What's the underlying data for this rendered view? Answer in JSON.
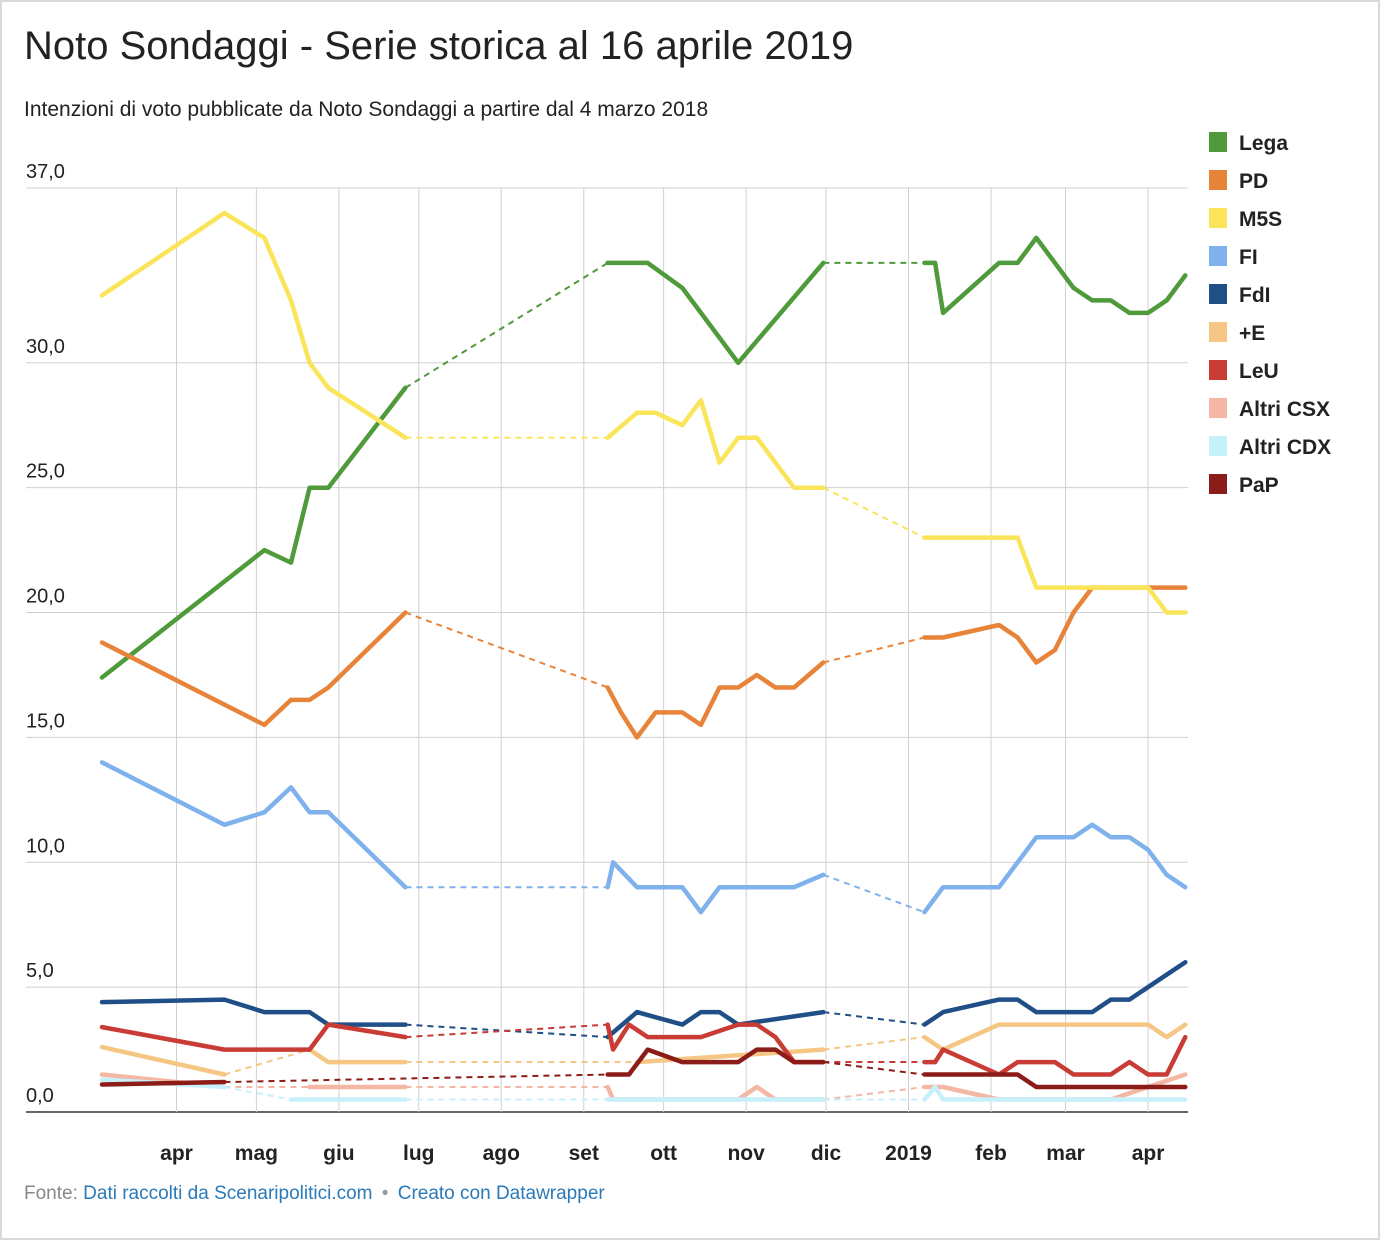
{
  "title": "Noto Sondaggi - Serie storica al 16 aprile 2019",
  "subtitle": "Intenzioni di voto pubblicate da Noto Sondaggi a partire dal 4 marzo 2018",
  "footer": {
    "source_label": "Fonte:",
    "source_link": "Dati raccolti da Scenaripolitici.com",
    "separator": "•",
    "credit_link": "Creato con Datawrapper"
  },
  "chart_data": {
    "type": "line",
    "title": "Noto Sondaggi - Serie storica al 16 aprile 2019",
    "subtitle": "Intenzioni di voto pubblicate da Noto Sondaggi a partire dal 4 marzo 2018",
    "xlabel": "",
    "ylabel": "",
    "xlim": [
      "2018-03-04",
      "2019-04-16"
    ],
    "ylim": [
      0,
      37
    ],
    "y_ticks": [
      0,
      5,
      10,
      15,
      20,
      25,
      30,
      37
    ],
    "y_tick_labels": [
      "0,0",
      "5,0",
      "10,0",
      "15,0",
      "20,0",
      "25,0",
      "30,0",
      "37,0"
    ],
    "x_ticks": [
      {
        "date": "2018-04-01",
        "label": "apr"
      },
      {
        "date": "2018-05-01",
        "label": "mag"
      },
      {
        "date": "2018-06-01",
        "label": "giu"
      },
      {
        "date": "2018-07-01",
        "label": "lug"
      },
      {
        "date": "2018-08-01",
        "label": "ago"
      },
      {
        "date": "2018-09-01",
        "label": "set"
      },
      {
        "date": "2018-10-01",
        "label": "ott"
      },
      {
        "date": "2018-11-01",
        "label": "nov"
      },
      {
        "date": "2018-12-01",
        "label": "dic"
      },
      {
        "date": "2019-01-01",
        "label": "2019"
      },
      {
        "date": "2019-02-01",
        "label": "feb"
      },
      {
        "date": "2019-03-01",
        "label": "mar"
      },
      {
        "date": "2019-04-01",
        "label": "apr"
      }
    ],
    "grid": true,
    "legend_position": "right",
    "series": [
      {
        "name": "Lega",
        "color": "#4f9a3a",
        "points": [
          [
            "2018-03-04",
            17.4
          ],
          [
            "2018-05-04",
            22.5
          ],
          [
            "2018-05-14",
            22.0
          ],
          [
            "2018-05-21",
            25.0
          ],
          [
            "2018-05-28",
            25.0
          ],
          [
            "2018-06-26",
            29.0
          ],
          null,
          [
            "2018-09-10",
            34.0
          ],
          [
            "2018-09-25",
            34.0
          ],
          [
            "2018-10-08",
            33.0
          ],
          [
            "2018-10-29",
            30.0
          ],
          [
            "2018-11-30",
            34.0
          ],
          null,
          [
            "2019-01-07",
            34.0
          ],
          [
            "2019-01-11",
            34.0
          ],
          [
            "2019-01-14",
            32.0
          ],
          [
            "2019-02-04",
            34.0
          ],
          [
            "2019-02-11",
            34.0
          ],
          [
            "2019-02-18",
            35.0
          ],
          [
            "2019-03-04",
            33.0
          ],
          [
            "2019-03-11",
            32.5
          ],
          [
            "2019-03-18",
            32.5
          ],
          [
            "2019-03-25",
            32.0
          ],
          [
            "2019-04-01",
            32.0
          ],
          [
            "2019-04-08",
            32.5
          ],
          [
            "2019-04-15",
            33.5
          ]
        ]
      },
      {
        "name": "PD",
        "color": "#e8843a",
        "points": [
          [
            "2018-03-04",
            18.8
          ],
          [
            "2018-05-04",
            15.5
          ],
          [
            "2018-05-14",
            16.5
          ],
          [
            "2018-05-21",
            16.5
          ],
          [
            "2018-05-28",
            17.0
          ],
          [
            "2018-06-26",
            20.0
          ],
          null,
          [
            "2018-09-10",
            17.0
          ],
          [
            "2018-09-15",
            16.0
          ],
          [
            "2018-09-21",
            15.0
          ],
          [
            "2018-09-28",
            16.0
          ],
          [
            "2018-10-08",
            16.0
          ],
          [
            "2018-10-15",
            15.5
          ],
          [
            "2018-10-22",
            17.0
          ],
          [
            "2018-10-29",
            17.0
          ],
          [
            "2018-11-05",
            17.5
          ],
          [
            "2018-11-12",
            17.0
          ],
          [
            "2018-11-19",
            17.0
          ],
          [
            "2018-11-30",
            18.0
          ],
          null,
          [
            "2019-01-07",
            19.0
          ],
          [
            "2019-01-14",
            19.0
          ],
          [
            "2019-02-04",
            19.5
          ],
          [
            "2019-02-11",
            19.0
          ],
          [
            "2019-02-18",
            18.0
          ],
          [
            "2019-02-25",
            18.5
          ],
          [
            "2019-03-04",
            20.0
          ],
          [
            "2019-03-11",
            21.0
          ],
          [
            "2019-03-18",
            21.0
          ],
          [
            "2019-04-01",
            21.0
          ],
          [
            "2019-04-15",
            21.0
          ]
        ]
      },
      {
        "name": "M5S",
        "color": "#fae55a",
        "points": [
          [
            "2018-03-04",
            32.7
          ],
          [
            "2018-04-19",
            36.0
          ],
          [
            "2018-05-04",
            35.0
          ],
          [
            "2018-05-14",
            32.5
          ],
          [
            "2018-05-21",
            30.0
          ],
          [
            "2018-05-28",
            29.0
          ],
          [
            "2018-06-26",
            27.0
          ],
          null,
          [
            "2018-09-10",
            27.0
          ],
          [
            "2018-09-21",
            28.0
          ],
          [
            "2018-09-28",
            28.0
          ],
          [
            "2018-10-08",
            27.5
          ],
          [
            "2018-10-15",
            28.5
          ],
          [
            "2018-10-22",
            26.0
          ],
          [
            "2018-10-29",
            27.0
          ],
          [
            "2018-11-05",
            27.0
          ],
          [
            "2018-11-19",
            25.0
          ],
          [
            "2018-11-30",
            25.0
          ],
          null,
          [
            "2019-01-07",
            23.0
          ],
          [
            "2019-01-14",
            23.0
          ],
          [
            "2019-02-11",
            23.0
          ],
          [
            "2019-02-18",
            21.0
          ],
          [
            "2019-03-18",
            21.0
          ],
          [
            "2019-04-01",
            21.0
          ],
          [
            "2019-04-08",
            20.0
          ],
          [
            "2019-04-15",
            20.0
          ]
        ]
      },
      {
        "name": "FI",
        "color": "#7fb2ec",
        "points": [
          [
            "2018-03-04",
            14.0
          ],
          [
            "2018-04-19",
            11.5
          ],
          [
            "2018-05-04",
            12.0
          ],
          [
            "2018-05-14",
            13.0
          ],
          [
            "2018-05-21",
            12.0
          ],
          [
            "2018-05-28",
            12.0
          ],
          [
            "2018-06-26",
            9.0
          ],
          null,
          [
            "2018-09-10",
            9.0
          ],
          [
            "2018-09-12",
            10.0
          ],
          [
            "2018-09-21",
            9.0
          ],
          [
            "2018-10-08",
            9.0
          ],
          [
            "2018-10-15",
            8.0
          ],
          [
            "2018-10-22",
            9.0
          ],
          [
            "2018-11-19",
            9.0
          ],
          [
            "2018-11-30",
            9.5
          ],
          null,
          [
            "2019-01-07",
            8.0
          ],
          [
            "2019-01-14",
            9.0
          ],
          [
            "2019-02-04",
            9.0
          ],
          [
            "2019-02-18",
            11.0
          ],
          [
            "2019-03-04",
            11.0
          ],
          [
            "2019-03-11",
            11.5
          ],
          [
            "2019-03-18",
            11.0
          ],
          [
            "2019-03-25",
            11.0
          ],
          [
            "2019-04-01",
            10.5
          ],
          [
            "2019-04-08",
            9.5
          ],
          [
            "2019-04-15",
            9.0
          ]
        ]
      },
      {
        "name": "FdI",
        "color": "#1f4f86",
        "points": [
          [
            "2018-03-04",
            4.4
          ],
          [
            "2018-04-19",
            4.5
          ],
          [
            "2018-05-04",
            4.0
          ],
          [
            "2018-05-21",
            4.0
          ],
          [
            "2018-05-28",
            3.5
          ],
          [
            "2018-06-26",
            3.5
          ],
          null,
          [
            "2018-09-10",
            3.0
          ],
          [
            "2018-09-21",
            4.0
          ],
          [
            "2018-10-08",
            3.5
          ],
          [
            "2018-10-15",
            4.0
          ],
          [
            "2018-10-22",
            4.0
          ],
          [
            "2018-10-29",
            3.5
          ],
          [
            "2018-11-30",
            4.0
          ],
          null,
          [
            "2019-01-07",
            3.5
          ],
          [
            "2019-01-14",
            4.0
          ],
          [
            "2019-02-04",
            4.5
          ],
          [
            "2019-02-11",
            4.5
          ],
          [
            "2019-02-18",
            4.0
          ],
          [
            "2019-03-11",
            4.0
          ],
          [
            "2019-03-18",
            4.5
          ],
          [
            "2019-03-25",
            4.5
          ],
          [
            "2019-04-15",
            6.0
          ]
        ]
      },
      {
        "name": "+E",
        "color": "#f6c784",
        "points": [
          [
            "2018-03-04",
            2.6
          ],
          [
            "2018-04-19",
            1.5
          ],
          null,
          [
            "2018-05-21",
            2.5
          ],
          [
            "2018-05-28",
            2.0
          ],
          [
            "2018-06-26",
            2.0
          ],
          null,
          [
            "2018-09-21",
            2.0
          ],
          [
            "2018-11-30",
            2.5
          ],
          null,
          [
            "2019-01-07",
            3.0
          ],
          [
            "2019-01-14",
            2.5
          ],
          [
            "2019-02-04",
            3.5
          ],
          [
            "2019-04-01",
            3.5
          ],
          [
            "2019-04-08",
            3.0
          ],
          [
            "2019-04-15",
            3.5
          ]
        ]
      },
      {
        "name": "LeU",
        "color": "#c93b35",
        "points": [
          [
            "2018-03-04",
            3.4
          ],
          [
            "2018-04-19",
            2.5
          ],
          [
            "2018-05-21",
            2.5
          ],
          [
            "2018-05-28",
            3.5
          ],
          [
            "2018-06-26",
            3.0
          ],
          null,
          [
            "2018-09-10",
            3.5
          ],
          [
            "2018-09-12",
            2.5
          ],
          [
            "2018-09-18",
            3.5
          ],
          [
            "2018-09-25",
            3.0
          ],
          [
            "2018-10-15",
            3.0
          ],
          [
            "2018-10-29",
            3.5
          ],
          [
            "2018-11-05",
            3.5
          ],
          [
            "2018-11-12",
            3.0
          ],
          [
            "2018-11-19",
            2.0
          ],
          [
            "2018-11-30",
            2.0
          ],
          null,
          [
            "2019-01-07",
            2.0
          ],
          [
            "2019-01-11",
            2.0
          ],
          [
            "2019-01-14",
            2.5
          ],
          [
            "2019-02-04",
            1.5
          ],
          [
            "2019-02-11",
            2.0
          ],
          [
            "2019-02-25",
            2.0
          ],
          [
            "2019-03-04",
            1.5
          ],
          [
            "2019-03-18",
            1.5
          ],
          [
            "2019-03-25",
            2.0
          ],
          [
            "2019-04-01",
            1.5
          ],
          [
            "2019-04-08",
            1.5
          ],
          [
            "2019-04-15",
            3.0
          ]
        ]
      },
      {
        "name": "Altri CSX",
        "color": "#f4b7a4",
        "points": [
          [
            "2018-03-04",
            1.5
          ],
          [
            "2018-04-19",
            1.0
          ],
          null,
          [
            "2018-05-21",
            1.0
          ],
          [
            "2018-06-26",
            1.0
          ],
          null,
          [
            "2018-09-10",
            1.0
          ],
          [
            "2018-09-12",
            0.5
          ],
          [
            "2018-10-29",
            0.5
          ],
          [
            "2018-11-05",
            1.0
          ],
          [
            "2018-11-12",
            0.5
          ],
          [
            "2018-11-30",
            0.5
          ],
          null,
          [
            "2019-01-07",
            1.0
          ],
          [
            "2019-01-14",
            1.0
          ],
          [
            "2019-02-04",
            0.5
          ],
          [
            "2019-03-18",
            0.5
          ],
          [
            "2019-04-01",
            1.0
          ],
          [
            "2019-04-15",
            1.5
          ]
        ]
      },
      {
        "name": "Altri CDX",
        "color": "#c6f1fb",
        "points": [
          [
            "2018-03-04",
            1.3
          ],
          [
            "2018-04-19",
            1.0
          ],
          null,
          [
            "2018-05-14",
            0.5
          ],
          [
            "2018-06-26",
            0.5
          ],
          null,
          [
            "2018-09-10",
            0.5
          ],
          [
            "2018-11-30",
            0.5
          ],
          null,
          [
            "2019-01-07",
            0.5
          ],
          [
            "2019-01-11",
            1.0
          ],
          [
            "2019-01-14",
            0.5
          ],
          [
            "2019-04-15",
            0.5
          ]
        ]
      },
      {
        "name": "PaP",
        "color": "#8c1c17",
        "points": [
          [
            "2018-03-04",
            1.1
          ],
          [
            "2018-04-19",
            1.2
          ],
          null,
          [
            "2018-09-10",
            1.5
          ],
          [
            "2018-09-18",
            1.5
          ],
          [
            "2018-09-25",
            2.5
          ],
          [
            "2018-10-08",
            2.0
          ],
          [
            "2018-10-29",
            2.0
          ],
          [
            "2018-11-05",
            2.5
          ],
          [
            "2018-11-12",
            2.5
          ],
          [
            "2018-11-19",
            2.0
          ],
          [
            "2018-11-30",
            2.0
          ],
          null,
          [
            "2019-01-07",
            1.5
          ],
          [
            "2019-02-11",
            1.5
          ],
          [
            "2019-02-18",
            1.0
          ],
          [
            "2019-04-15",
            1.0
          ]
        ]
      }
    ]
  }
}
